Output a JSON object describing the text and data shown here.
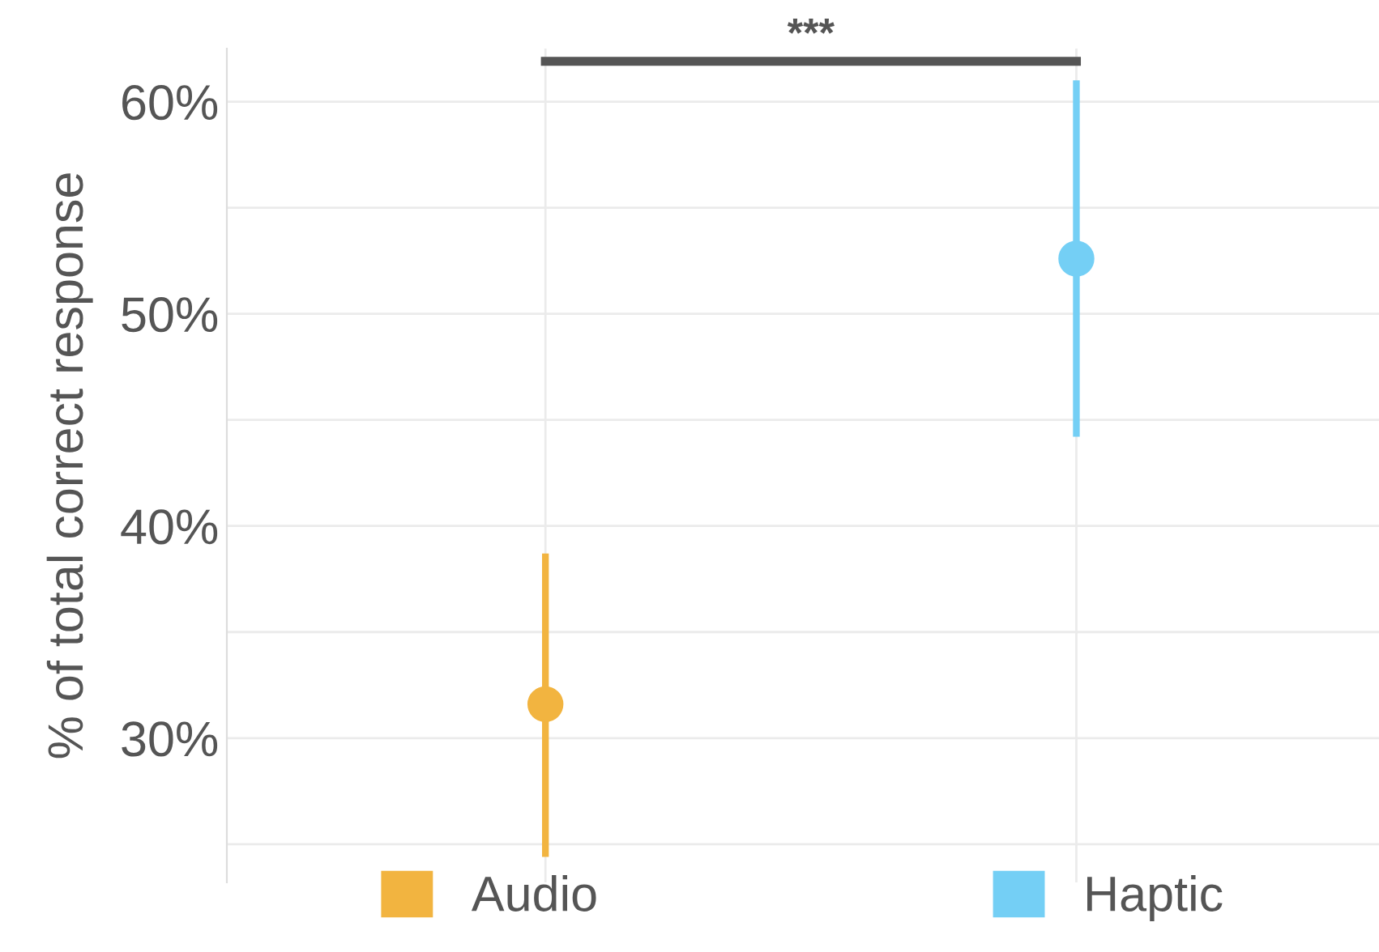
{
  "chart_data": {
    "type": "scatter",
    "ylabel": "% of total correct response",
    "categories": [
      null,
      null
    ],
    "series": [
      {
        "name": "Audio",
        "color": "#f2b440",
        "values": [
          31.6,
          null
        ],
        "errors": [
          [
            24.4,
            38.7
          ],
          null
        ]
      },
      {
        "name": "Haptic",
        "color": "#74cff5",
        "values": [
          null,
          52.6
        ],
        "errors": [
          null,
          [
            44.2,
            61.0
          ]
        ]
      }
    ],
    "ylim": [
      23.2,
      62.5
    ],
    "yticks": [
      {
        "value": 25,
        "label": null
      },
      {
        "value": 30,
        "label": "30%"
      },
      {
        "value": 35,
        "label": null
      },
      {
        "value": 40,
        "label": "40%"
      },
      {
        "value": 45,
        "label": null
      },
      {
        "value": 50,
        "label": "50%"
      },
      {
        "value": 55,
        "label": null
      },
      {
        "value": 60,
        "label": "60%"
      }
    ],
    "annotations": [
      "***"
    ],
    "grid": true,
    "legend": "bottom",
    "marker": "circle"
  }
}
